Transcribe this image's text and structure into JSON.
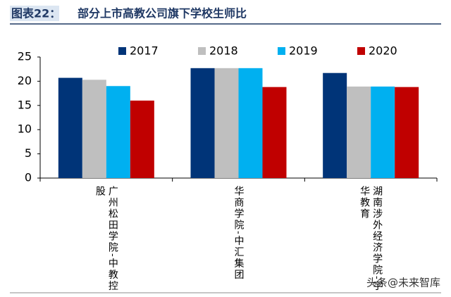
{
  "chart_data": {
    "type": "bar",
    "title_label": "图表22：",
    "title": "部分上市高教公司旗下学校生师比",
    "categories": [
      "广州松田学院-中教控股",
      "华商学院-中汇集团",
      "湖南涉外经济学院-宇华教育"
    ],
    "series": [
      {
        "name": "2017",
        "color": "#003478",
        "values": [
          20.7,
          22.7,
          21.7
        ]
      },
      {
        "name": "2018",
        "color": "#bfbfbf",
        "values": [
          20.3,
          22.7,
          18.9
        ]
      },
      {
        "name": "2019",
        "color": "#00b0f0",
        "values": [
          19.0,
          22.7,
          18.9
        ]
      },
      {
        "name": "2020",
        "color": "#c00000",
        "values": [
          16.0,
          18.8,
          18.8
        ]
      }
    ],
    "ylim": [
      0,
      25
    ],
    "yticks": [
      0,
      5,
      10,
      15,
      20,
      25
    ],
    "legend": "top",
    "watermark": "头条@未来智库"
  }
}
